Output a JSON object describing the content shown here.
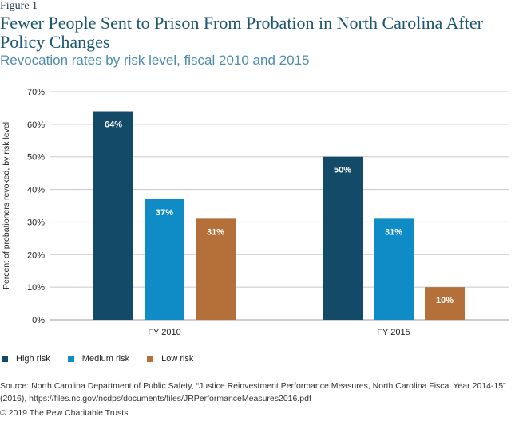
{
  "figure_label": "Figure 1",
  "colors": {
    "High risk": "#124a68",
    "Medium risk": "#0f8cc6",
    "Low risk": "#b5703a"
  },
  "chart_data": {
    "type": "bar",
    "title": "Fewer People Sent to Prison From Probation in North Carolina After Policy Changes",
    "subtitle": "Revocation rates by risk level, fiscal 2010 and 2015",
    "xlabel": "",
    "ylabel": "Percent of probationers revoked, by risk level",
    "categories": [
      "FY 2010",
      "FY 2015"
    ],
    "ylim": [
      0,
      70
    ],
    "yticks": [
      "0%",
      "10%",
      "20%",
      "30%",
      "40%",
      "50%",
      "60%",
      "70%"
    ],
    "grid": true,
    "legend_position": "bottom-left",
    "series": [
      {
        "name": "High risk",
        "values": [
          64,
          50
        ],
        "labels": [
          "64%",
          "50%"
        ]
      },
      {
        "name": "Medium risk",
        "values": [
          37,
          31
        ],
        "labels": [
          "37%",
          "31%"
        ]
      },
      {
        "name": "Low risk",
        "values": [
          31,
          10
        ],
        "labels": [
          "31%",
          "10%"
        ]
      }
    ]
  },
  "source": "Source: North Carolina Department of Public Safety, “Justice Reinvestment Performance Measures, North Carolina Fiscal Year 2014-15” (2016), https://files.nc.gov/ncdps/documents/files/JRPerformanceMeasures2016.pdf",
  "copyright": "© 2019 The Pew Charitable Trusts"
}
